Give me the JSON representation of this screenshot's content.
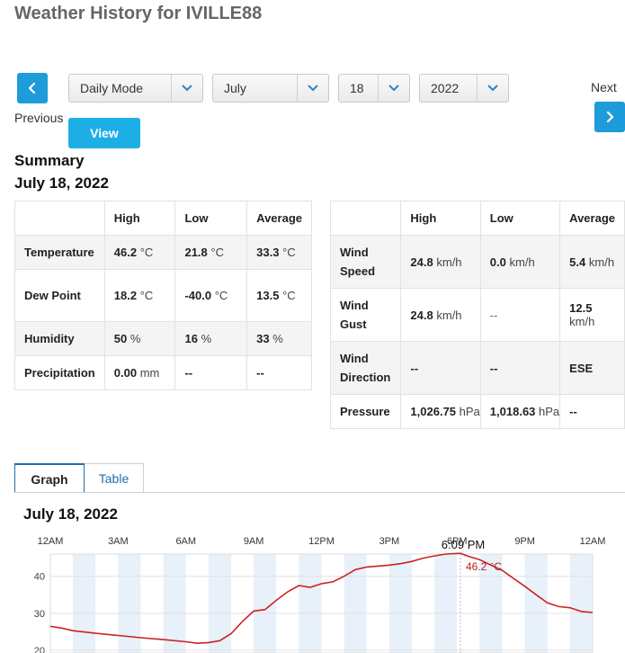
{
  "page": {
    "title": "Weather History for IVILLE88"
  },
  "nav": {
    "previous_label": "Previous",
    "next_label": "Next",
    "previous_icon": "chevron-left-icon",
    "next_icon": "chevron-right-icon",
    "mode": "Daily Mode",
    "month": "July",
    "day": "18",
    "year": "2022",
    "view_label": "View"
  },
  "summary": {
    "heading": "Summary",
    "date": "July 18, 2022",
    "left_table": {
      "headers": [
        "",
        "High",
        "Low",
        "Average"
      ],
      "rows": [
        {
          "label": "Temperature",
          "high": "46.2",
          "high_unit": "°C",
          "low": "21.8",
          "low_unit": "°C",
          "avg": "33.3",
          "avg_unit": "°C"
        },
        {
          "label": "Dew Point",
          "high": "18.2",
          "high_unit": "°C",
          "low": "-40.0",
          "low_unit": "°C",
          "avg": "13.5",
          "avg_unit": "°C"
        },
        {
          "label": "Humidity",
          "high": "50",
          "high_unit": "%",
          "low": "16",
          "low_unit": "%",
          "avg": "33",
          "avg_unit": "%"
        },
        {
          "label": "Precipitation",
          "high": "0.00",
          "high_unit": "mm",
          "low": "--",
          "low_unit": "",
          "avg": "--",
          "avg_unit": ""
        }
      ]
    },
    "right_table": {
      "headers": [
        "",
        "High",
        "Low",
        "Average"
      ],
      "rows": [
        {
          "label": "Wind Speed",
          "high": "24.8",
          "high_unit": "km/h",
          "low": "0.0",
          "low_unit": "km/h",
          "avg": "5.4",
          "avg_unit": "km/h"
        },
        {
          "label": "Wind Gust",
          "high": "24.8",
          "high_unit": "km/h",
          "low": "--",
          "low_unit": "",
          "avg": "12.5",
          "avg_unit": "km/h"
        },
        {
          "label": "Wind Direction",
          "high": "--",
          "high_unit": "",
          "low": "--",
          "low_unit": "",
          "avg": "ESE",
          "avg_unit": ""
        },
        {
          "label": "Pressure",
          "high": "1,026.75",
          "high_unit": "hPa",
          "low": "1,018.63",
          "low_unit": "hPa",
          "avg": "--",
          "avg_unit": ""
        }
      ]
    }
  },
  "tabs": {
    "graph": "Graph",
    "table": "Table"
  },
  "graph": {
    "date": "July 18, 2022"
  },
  "chart_data": {
    "type": "line",
    "title": "",
    "x_tick_labels": [
      "12AM",
      "3AM",
      "6AM",
      "9AM",
      "12PM",
      "3PM",
      "6PM",
      "9PM",
      "12AM"
    ],
    "y_ticks": [
      20,
      30,
      40
    ],
    "ylim": [
      20,
      46
    ],
    "x_hours_range": [
      0,
      24
    ],
    "tooltip": {
      "time": "6:09 PM",
      "value": "46.2 °C",
      "hour": 18.15
    },
    "series": [
      {
        "unit": "°C",
        "color": "#cc2222",
        "x_hours": [
          0,
          0.5,
          1,
          2,
          3,
          4,
          5,
          6,
          6.5,
          7,
          7.5,
          8,
          8.5,
          9,
          9.5,
          10,
          10.5,
          11,
          11.5,
          12,
          12.5,
          13,
          13.5,
          14,
          15,
          15.5,
          16,
          16.5,
          17,
          17.5,
          18.15,
          18.5,
          19,
          19.5,
          20,
          20.5,
          21,
          21.5,
          22,
          22.5,
          23,
          23.5,
          24
        ],
        "values": [
          26.5,
          26.0,
          25.3,
          24.6,
          24.0,
          23.4,
          22.9,
          22.3,
          21.9,
          22.1,
          22.6,
          24.5,
          27.8,
          30.6,
          31.0,
          33.5,
          35.8,
          37.5,
          37.0,
          38.0,
          38.5,
          40.0,
          41.8,
          42.5,
          43.0,
          43.4,
          44.0,
          44.9,
          45.5,
          46.0,
          46.2,
          45.4,
          44.5,
          43.0,
          41.6,
          39.4,
          37.3,
          35.0,
          32.8,
          31.8,
          31.5,
          30.5,
          30.2
        ]
      }
    ]
  }
}
